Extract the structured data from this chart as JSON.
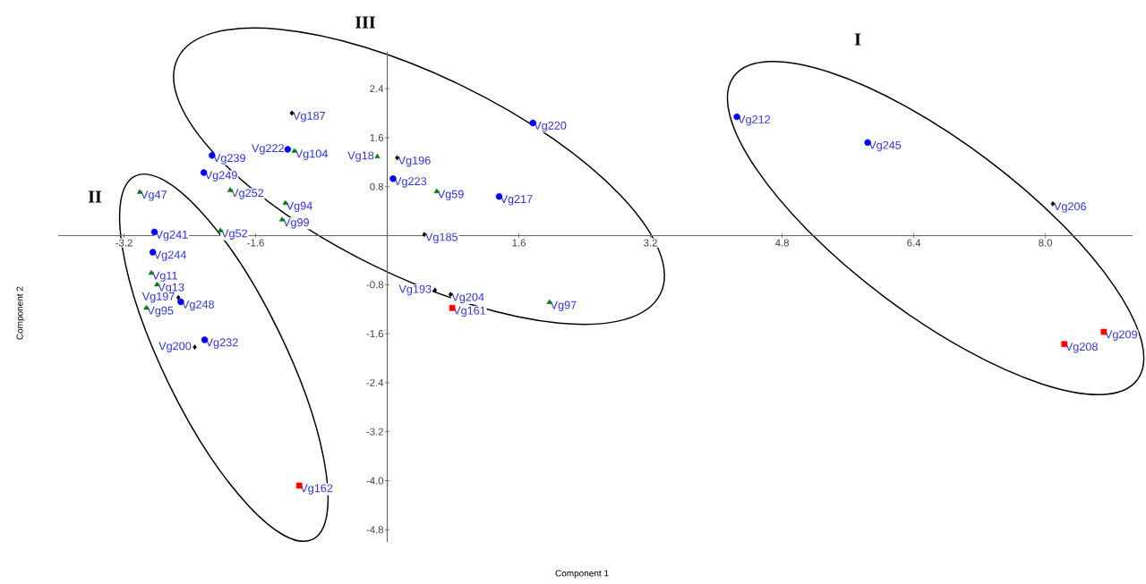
{
  "chart_data": {
    "type": "scatter",
    "xlabel": "Component 1",
    "ylabel": "Component 2",
    "xlim": [
      -4.0,
      9.06
    ],
    "ylim": [
      -5.0,
      3.0
    ],
    "xticks": [
      -3.2,
      -1.6,
      1.6,
      3.2,
      4.8,
      6.4,
      {
        "value": 8.0,
        "label": "8.0"
      }
    ],
    "yticks": [
      -4.8,
      {
        "value": -4.0,
        "label": "-4.0"
      },
      -3.2,
      -2.4,
      -1.6,
      -0.8,
      0.8,
      1.6,
      2.4
    ],
    "series": [
      {
        "color": "#0000ff",
        "marker": "circle",
        "x": [
          -1.21,
          -2.13,
          -2.23,
          -2.83,
          -2.85,
          -2.51,
          -2.22,
          1.77,
          0.07,
          1.36,
          4.25,
          5.84
        ],
        "values": [
          1.41,
          1.31,
          1.03,
          0.06,
          -0.27,
          -1.08,
          -1.7,
          1.84,
          0.93,
          0.64,
          1.94,
          1.52
        ]
      },
      {
        "color": "#008000",
        "marker": "triangle",
        "x": [
          -1.13,
          -0.12,
          -3.01,
          -1.91,
          -1.24,
          -1.28,
          -2.03,
          -2.87,
          -2.8,
          -2.93,
          0.6,
          1.97
        ],
        "values": [
          1.38,
          1.29,
          0.71,
          0.74,
          0.53,
          0.26,
          0.08,
          -0.61,
          -0.8,
          -1.18,
          0.72,
          -1.09
        ]
      },
      {
        "color": "#000000",
        "marker": "diamond",
        "x": [
          -1.16,
          0.12,
          -2.54,
          -2.34,
          0.45,
          0.58,
          0.77,
          8.09
        ],
        "values": [
          2.0,
          1.27,
          -1.01,
          -1.82,
          0.02,
          -0.89,
          -0.96,
          0.52
        ]
      },
      {
        "color": "#ff0000",
        "marker": "square",
        "x": [
          -1.07,
          0.79,
          8.23,
          8.71
        ],
        "values": [
          -4.08,
          -1.18,
          -1.77,
          -1.57
        ]
      }
    ],
    "annotations": [
      "III",
      "I",
      "II",
      {
        "text": "Vg222",
        "x": -1.21,
        "y": 1.41
      },
      {
        "text": "Vg239",
        "x": -2.13,
        "y": 1.31
      },
      {
        "text": "Vg249",
        "x": -2.23,
        "y": 1.03
      },
      {
        "text": "Vg241",
        "x": -2.83,
        "y": 0.06
      },
      {
        "text": "Vg244",
        "x": -2.85,
        "y": -0.27
      },
      {
        "text": "Vg248",
        "x": -2.51,
        "y": -1.08
      },
      {
        "text": "Vg232",
        "x": -2.22,
        "y": -1.7
      },
      {
        "text": "Vg220",
        "x": 1.77,
        "y": 1.84
      },
      {
        "text": "Vg223",
        "x": 0.07,
        "y": 0.93
      },
      {
        "text": "Vg217",
        "x": 1.36,
        "y": 0.64
      },
      {
        "text": "Vg212",
        "x": 4.25,
        "y": 1.94
      },
      {
        "text": "Vg245",
        "x": 5.84,
        "y": 1.52
      },
      {
        "text": "Vg104",
        "x": -1.13,
        "y": 1.38
      },
      {
        "text": "Vg18",
        "x": -0.12,
        "y": 1.29
      },
      {
        "text": "Vg47",
        "x": -3.01,
        "y": 0.71
      },
      {
        "text": "Vg252",
        "x": -1.91,
        "y": 0.74
      },
      {
        "text": "Vg94",
        "x": -1.24,
        "y": 0.53
      },
      {
        "text": "Vg99",
        "x": -1.28,
        "y": 0.26
      },
      {
        "text": "Vg52",
        "x": -2.03,
        "y": 0.08
      },
      {
        "text": "Vg11",
        "x": -2.87,
        "y": -0.61
      },
      {
        "text": "Vg13",
        "x": -2.8,
        "y": -0.8
      },
      {
        "text": "Vg95",
        "x": -2.93,
        "y": -1.18
      },
      {
        "text": "Vg59",
        "x": 0.6,
        "y": 0.72
      },
      {
        "text": "Vg97",
        "x": 1.97,
        "y": -1.09
      },
      {
        "text": "Vg187",
        "x": -1.16,
        "y": 2.0
      },
      {
        "text": "Vg196",
        "x": 0.12,
        "y": 1.27
      },
      {
        "text": "Vg197",
        "x": -2.54,
        "y": -1.01
      },
      {
        "text": "Vg200",
        "x": -2.34,
        "y": -1.82
      },
      {
        "text": "Vg185",
        "x": 0.45,
        "y": 0.02
      },
      {
        "text": "Vg193",
        "x": 0.58,
        "y": -0.89
      },
      {
        "text": "Vg204",
        "x": 0.77,
        "y": -0.96
      },
      {
        "text": "Vg206",
        "x": 8.09,
        "y": 0.52
      },
      {
        "text": "Vg162",
        "x": -1.07,
        "y": -4.08
      },
      {
        "text": "Vg161",
        "x": 0.79,
        "y": -1.18
      },
      {
        "text": "Vg208",
        "x": 8.23,
        "y": -1.77
      },
      {
        "text": "Vg209",
        "x": 8.71,
        "y": -1.57
      }
    ]
  }
}
